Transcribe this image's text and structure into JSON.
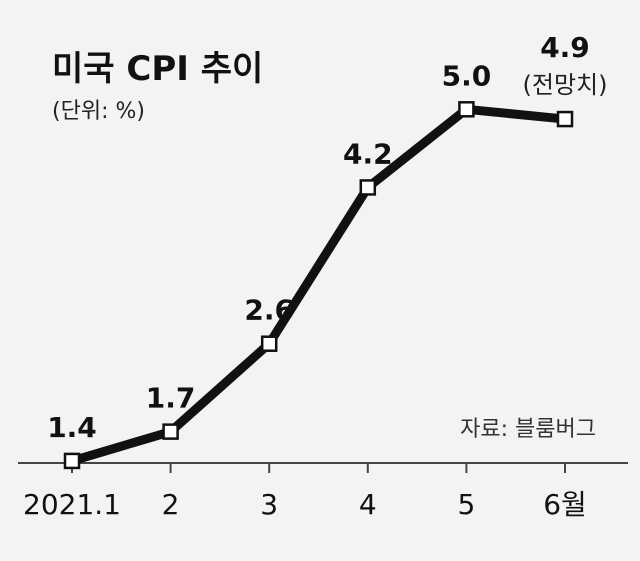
{
  "chart_data": {
    "type": "line",
    "title": "미국 CPI 추이",
    "subtitle": "(단위: %)",
    "source": "자료: 블룸버그",
    "categories": [
      "2021.1",
      "2",
      "3",
      "4",
      "5",
      "6월"
    ],
    "series": [
      {
        "values": [
          1.4,
          1.7,
          2.6,
          4.2,
          5.0,
          4.9
        ],
        "data_labels": [
          "1.4",
          "1.7",
          "2.6",
          "4.2",
          "5.0",
          "4.9"
        ]
      }
    ],
    "annotations": [
      {
        "category": "6월",
        "text": "(전망치)"
      }
    ],
    "xlabel": "",
    "ylabel": "",
    "ylim": [
      1.0,
      5.3
    ],
    "grid": false,
    "legend": "none",
    "colors": {
      "background": "#f3f3f3",
      "line": "#111111",
      "marker_fill": "#ffffff",
      "axis": "#444444"
    }
  }
}
